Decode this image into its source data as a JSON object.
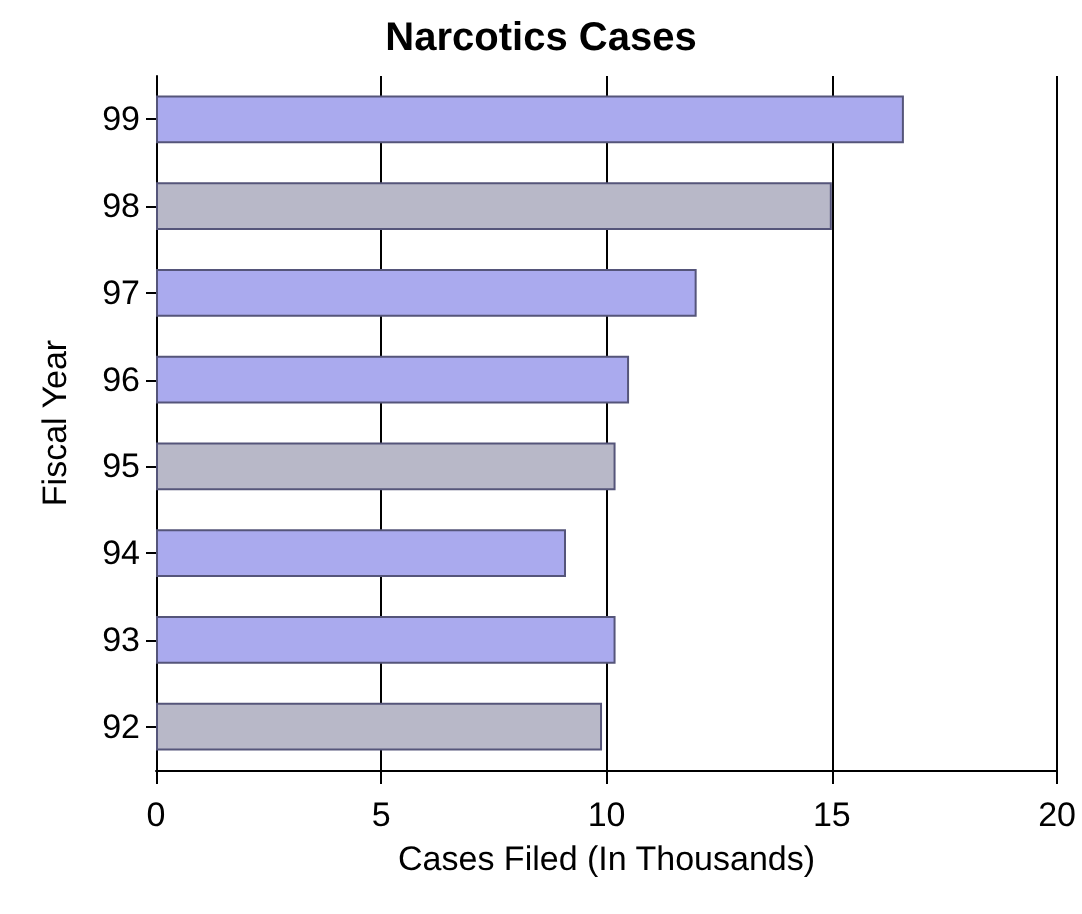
{
  "chart_data": {
    "type": "bar",
    "orientation": "horizontal",
    "title": "Narcotics Cases",
    "xlabel": "Cases Filed (In Thousands)",
    "ylabel": "Fiscal Year",
    "categories": [
      "99",
      "98",
      "97",
      "96",
      "95",
      "94",
      "93",
      "92"
    ],
    "values": [
      16.6,
      15.0,
      12.0,
      10.5,
      10.2,
      9.1,
      10.2,
      9.9
    ],
    "colors": [
      "#aaaaee",
      "#b8b8c8",
      "#aaaaee",
      "#aaaaee",
      "#b8b8c8",
      "#aaaaee",
      "#aaaaee",
      "#b8b8c8"
    ],
    "xlim": [
      0,
      20
    ],
    "xticks": [
      0,
      5,
      10,
      15,
      20
    ],
    "grid": "x"
  }
}
